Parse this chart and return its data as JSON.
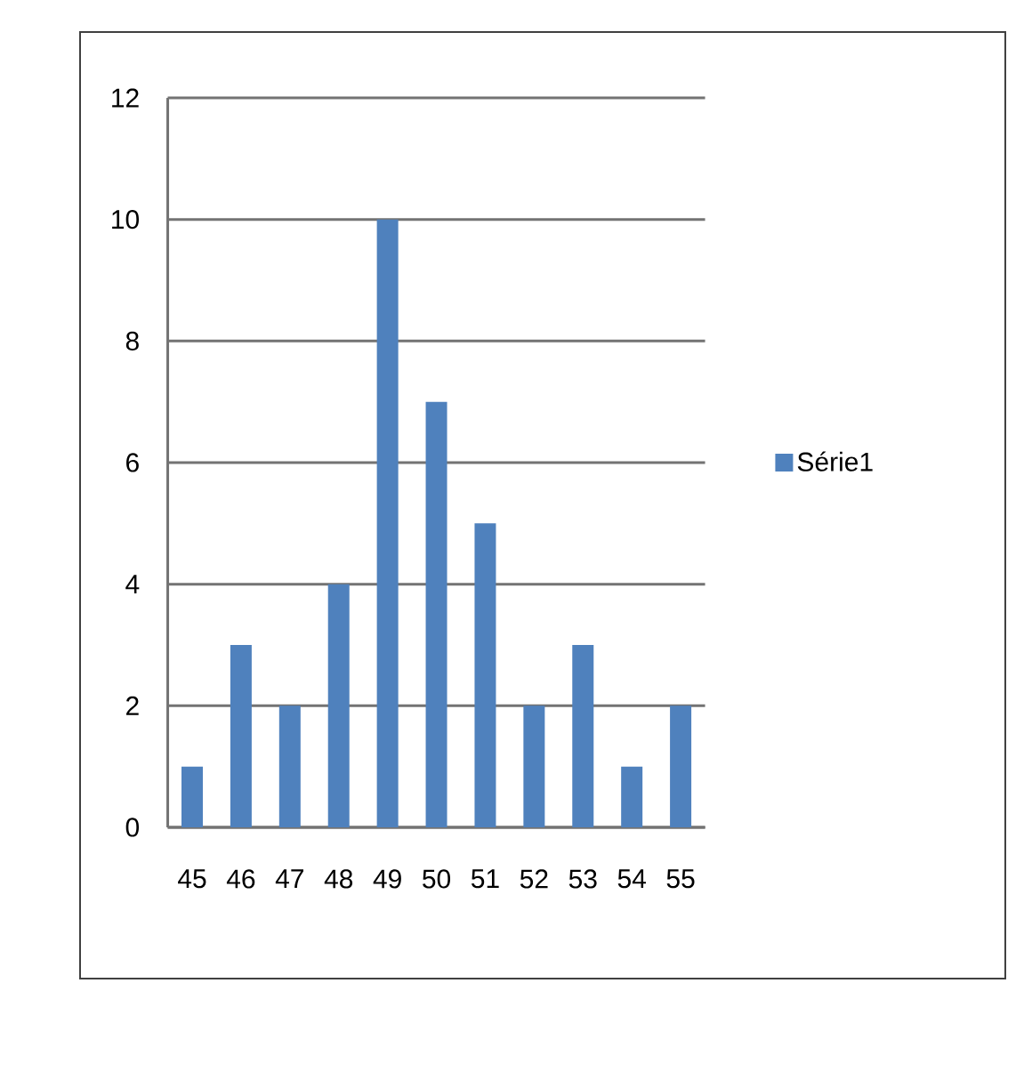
{
  "chart_data": {
    "type": "bar",
    "categories": [
      "45",
      "46",
      "47",
      "48",
      "49",
      "50",
      "51",
      "52",
      "53",
      "54",
      "55"
    ],
    "series": [
      {
        "name": "Série1",
        "color": "#4f81bd",
        "values": [
          1,
          3,
          2,
          4,
          10,
          7,
          5,
          2,
          3,
          1,
          2
        ]
      }
    ],
    "ylim": [
      0,
      12
    ],
    "yticks": [
      0,
      2,
      4,
      6,
      8,
      10,
      12
    ],
    "grid": "y",
    "legend": "right"
  }
}
